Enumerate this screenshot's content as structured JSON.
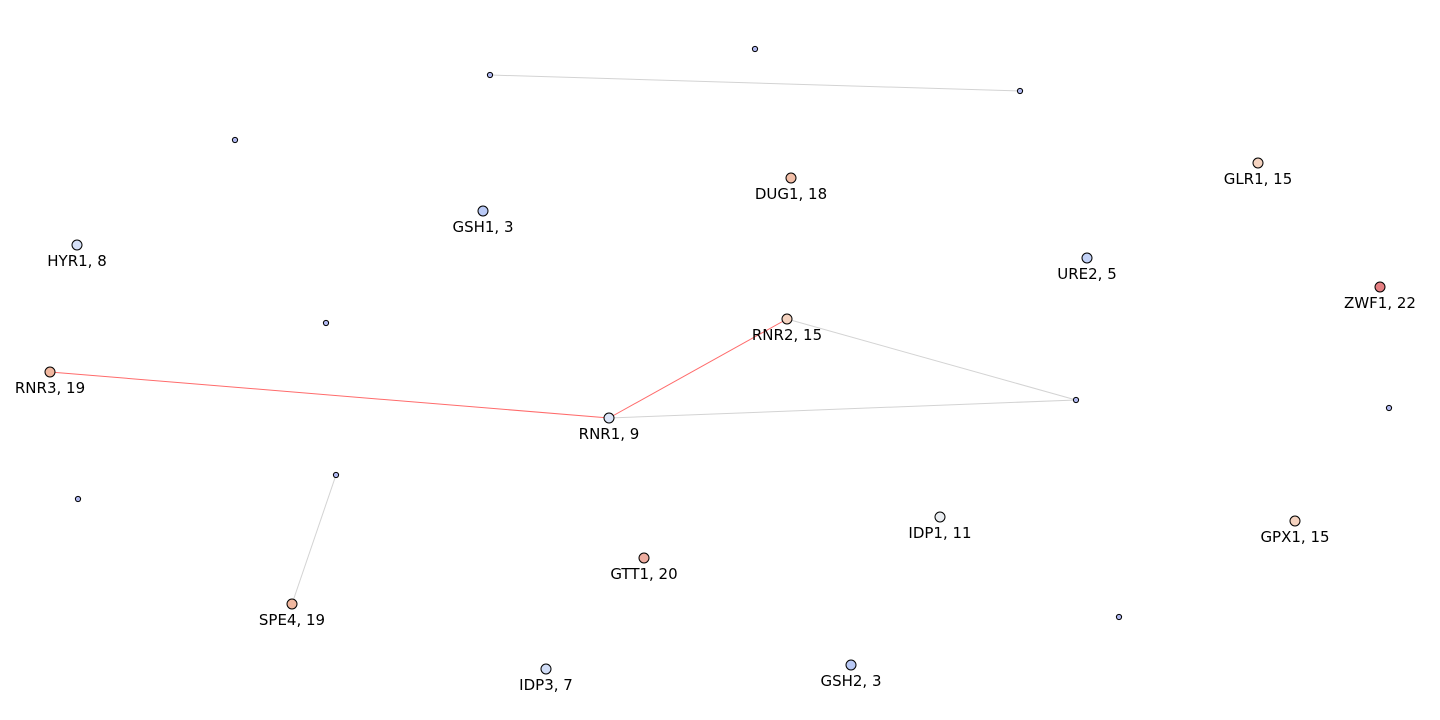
{
  "graph": {
    "colors": {
      "background": "#ffffff",
      "edge_default": "#d3d3d3",
      "edge_highlight": "#ff6b6b",
      "node_stroke": "#000000",
      "node_small": "#b0b8f0"
    },
    "nodes": [
      {
        "id": "RNR1",
        "label": "RNR1, 9",
        "value": 9,
        "color": "#dde6f8"
      },
      {
        "id": "RNR2",
        "label": "RNR2, 15",
        "value": 15,
        "color": "#f5d3c0"
      },
      {
        "id": "RNR3",
        "label": "RNR3, 19",
        "value": 19,
        "color": "#f1b8a0"
      },
      {
        "id": "GSH1",
        "label": "GSH1, 3",
        "value": 3,
        "color": "#b9c9f5"
      },
      {
        "id": "GSH2",
        "label": "GSH2, 3",
        "value": 3,
        "color": "#b9c9f5"
      },
      {
        "id": "HYR1",
        "label": "HYR1, 8",
        "value": 8,
        "color": "#d5e0f7"
      },
      {
        "id": "DUG1",
        "label": "DUG1, 18",
        "value": 18,
        "color": "#f2bfa8"
      },
      {
        "id": "GLR1",
        "label": "GLR1, 15",
        "value": 15,
        "color": "#f5d3c0"
      },
      {
        "id": "URE2",
        "label": "URE2, 5",
        "value": 5,
        "color": "#c3d2f7"
      },
      {
        "id": "ZWF1",
        "label": "ZWF1, 22",
        "value": 22,
        "color": "#e57f82"
      },
      {
        "id": "IDP1",
        "label": "IDP1, 11",
        "value": 11,
        "color": "#ebeef2"
      },
      {
        "id": "GPX1",
        "label": "GPX1, 15",
        "value": 15,
        "color": "#f5d3c0"
      },
      {
        "id": "GTT1",
        "label": "GTT1, 20",
        "value": 20,
        "color": "#eeada0"
      },
      {
        "id": "SPE4",
        "label": "SPE4, 19",
        "value": 19,
        "color": "#f1b8a0"
      },
      {
        "id": "IDP3",
        "label": "IDP3, 7",
        "value": 7,
        "color": "#d1ddf7"
      },
      {
        "id": "s1",
        "label": "",
        "color": "#b0b8f0"
      },
      {
        "id": "s2",
        "label": "",
        "color": "#b0b8f0"
      },
      {
        "id": "s3",
        "label": "",
        "color": "#b0b8f0"
      },
      {
        "id": "s4",
        "label": "",
        "color": "#b0b8f0"
      },
      {
        "id": "s5",
        "label": "",
        "color": "#b0b8f0"
      },
      {
        "id": "s6",
        "label": "",
        "color": "#b0b8f0"
      },
      {
        "id": "s7",
        "label": "",
        "color": "#b0b8f0"
      },
      {
        "id": "s8",
        "label": "",
        "color": "#b0b8f0"
      },
      {
        "id": "s9",
        "label": "",
        "color": "#b0b8f0"
      },
      {
        "id": "s10",
        "label": "",
        "color": "#b0b8f0"
      }
    ],
    "edges": [
      {
        "source": "RNR3",
        "target": "RNR1",
        "highlight": true
      },
      {
        "source": "RNR1",
        "target": "RNR2",
        "highlight": true
      },
      {
        "source": "RNR1",
        "target": "s6",
        "highlight": false
      },
      {
        "source": "RNR2",
        "target": "s6",
        "highlight": false
      },
      {
        "source": "s2",
        "target": "s3",
        "highlight": false
      },
      {
        "source": "s7",
        "target": "SPE4",
        "highlight": false
      }
    ]
  }
}
